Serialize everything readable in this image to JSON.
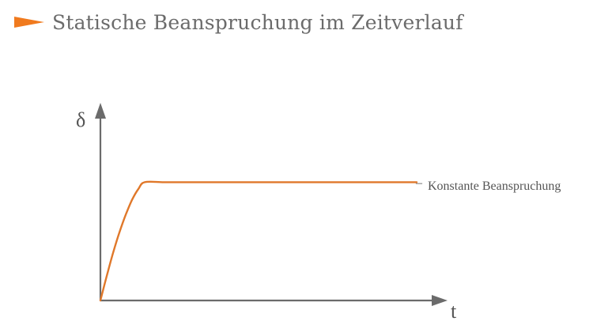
{
  "header": {
    "title": "Statische Beanspruchung im Zeitverlauf",
    "icon": "orange-triangle-icon",
    "accent_color": "#f07a1e"
  },
  "chart_data": {
    "type": "line",
    "title": "Statische Beanspruchung im Zeitverlauf",
    "xlabel": "t",
    "ylabel": "δ",
    "grid": false,
    "axis_color": "#6b6b6b",
    "series": [
      {
        "name": "Konstante Beanspruchung",
        "color": "#e0782a",
        "x": [
          0,
          2,
          4,
          6,
          8,
          10,
          12,
          14,
          20,
          28,
          40,
          55,
          70,
          85,
          100
        ],
        "y": [
          0,
          18,
          35,
          50,
          63,
          74,
          82,
          87,
          87,
          87,
          87,
          87,
          87,
          87,
          87
        ]
      }
    ],
    "annotation": {
      "prefix": "–",
      "text": "Konstante Beanspruchung"
    }
  }
}
